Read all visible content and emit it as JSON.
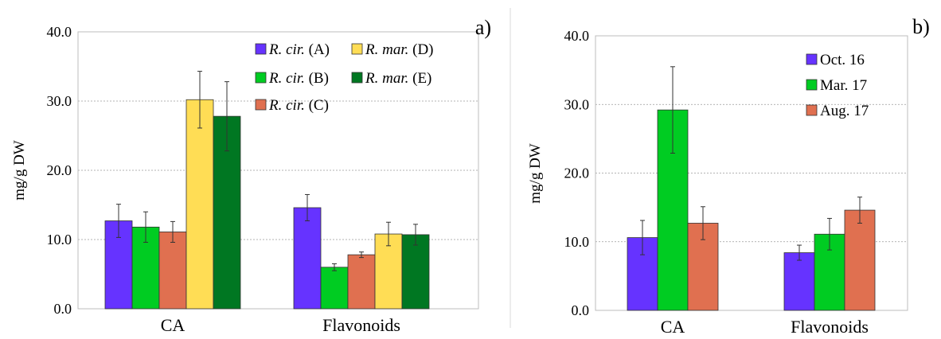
{
  "chart_data": [
    {
      "type": "bar",
      "panel_label": "a)",
      "ylabel": "mg/g DW",
      "ylim": [
        0,
        40
      ],
      "yticks": [
        "0.0",
        "10.0",
        "20.0",
        "30.0",
        "40.0"
      ],
      "ytick_values": [
        0,
        10,
        20,
        30,
        40
      ],
      "grid": true,
      "legend_position": "top-right",
      "categories": [
        "CA",
        "Flavonoids"
      ],
      "series": [
        {
          "name_main": "R. cir.",
          "name_suffix": " (A)",
          "color": "#6633ff",
          "values": [
            12.7,
            14.6
          ],
          "errors": [
            2.4,
            1.9
          ]
        },
        {
          "name_main": "R. cir.",
          "name_suffix": " (B)",
          "color": "#00cc22",
          "values": [
            11.8,
            6.0
          ],
          "errors": [
            2.2,
            0.5
          ]
        },
        {
          "name_main": "R. cir.",
          "name_suffix": " (C)",
          "color": "#e07050",
          "values": [
            11.1,
            7.8
          ],
          "errors": [
            1.5,
            0.4
          ]
        },
        {
          "name_main": "R. mar.",
          "name_suffix": " (D)",
          "color": "#ffdd55",
          "values": [
            30.2,
            10.8
          ],
          "errors": [
            4.1,
            1.7
          ]
        },
        {
          "name_main": "R. mar.",
          "name_suffix": " (E)",
          "color": "#007722",
          "values": [
            27.8,
            10.7
          ],
          "errors": [
            5.0,
            1.5
          ]
        }
      ]
    },
    {
      "type": "bar",
      "panel_label": "b)",
      "ylabel": "mg/g DW",
      "ylim": [
        0,
        40
      ],
      "yticks": [
        "0.0",
        "10.0",
        "20.0",
        "30.0",
        "40.0"
      ],
      "ytick_values": [
        0,
        10,
        20,
        30,
        40
      ],
      "grid": true,
      "legend_position": "top-right",
      "categories": [
        "CA",
        "Flavonoids"
      ],
      "series": [
        {
          "name": "Oct. 16",
          "color": "#6633ff",
          "values": [
            10.6,
            8.4
          ],
          "errors": [
            2.5,
            1.1
          ]
        },
        {
          "name": "Mar. 17",
          "color": "#00cc22",
          "values": [
            29.2,
            11.1
          ],
          "errors": [
            6.3,
            2.3
          ]
        },
        {
          "name": "Aug. 17",
          "color": "#e07050",
          "values": [
            12.7,
            14.6
          ],
          "errors": [
            2.4,
            1.9
          ]
        }
      ]
    }
  ]
}
